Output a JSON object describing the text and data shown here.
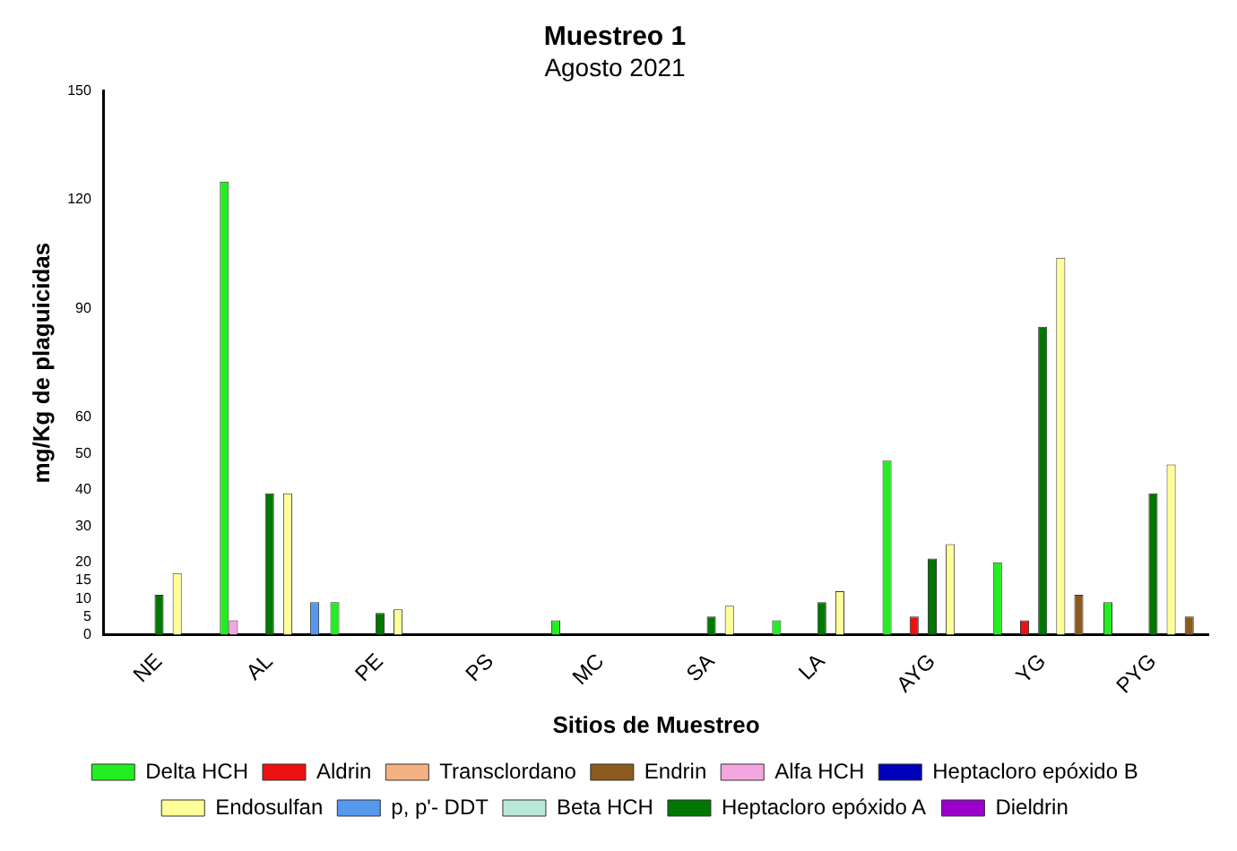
{
  "chart_data": {
    "type": "bar",
    "title": "Muestreo 1",
    "subtitle": "Agosto 2021",
    "xlabel": "Sitios de Muestreo",
    "ylabel": "mg/Kg de plaguicidas",
    "categories": [
      "NE",
      "AL",
      "PE",
      "PS",
      "MC",
      "SA",
      "LA",
      "AYG",
      "YG",
      "PYG"
    ],
    "series": [
      {
        "name": "Delta HCH",
        "color": "#22ee22",
        "values": [
          null,
          125,
          9,
          null,
          4,
          null,
          4,
          48,
          20,
          9
        ]
      },
      {
        "name": "Alfa HCH",
        "color": "#f4a6e0",
        "values": [
          null,
          4,
          null,
          null,
          null,
          null,
          null,
          null,
          null,
          null
        ]
      },
      {
        "name": "Beta HCH",
        "color": "#b8e8d8",
        "values": [
          null,
          null,
          null,
          null,
          null,
          null,
          null,
          null,
          null,
          null
        ]
      },
      {
        "name": "Aldrin",
        "color": "#ee1111",
        "values": [
          null,
          null,
          null,
          null,
          null,
          null,
          null,
          5,
          4,
          null
        ]
      },
      {
        "name": "Heptacloro epóxido B",
        "color": "#0000bb",
        "values": [
          null,
          null,
          null,
          null,
          null,
          null,
          null,
          null,
          null,
          null
        ]
      },
      {
        "name": "Heptacloro epóxido A",
        "color": "#007700",
        "values": [
          11,
          39,
          6,
          null,
          null,
          5,
          9,
          21,
          85,
          39
        ]
      },
      {
        "name": "Transclordano",
        "color": "#f4b183",
        "values": [
          null,
          null,
          null,
          null,
          null,
          null,
          null,
          null,
          null,
          null
        ]
      },
      {
        "name": "Endosulfan",
        "color": "#ffff99",
        "values": [
          17,
          39,
          7,
          null,
          null,
          8,
          12,
          25,
          104,
          47
        ]
      },
      {
        "name": "Dieldrin",
        "color": "#9900cc",
        "values": [
          null,
          null,
          null,
          null,
          null,
          null,
          null,
          null,
          null,
          null
        ]
      },
      {
        "name": "Endrin",
        "color": "#8b5a1e",
        "values": [
          null,
          null,
          null,
          null,
          null,
          null,
          null,
          null,
          11,
          5
        ]
      },
      {
        "name": "p, p'- DDT",
        "color": "#5599ee",
        "values": [
          null,
          9,
          null,
          null,
          null,
          null,
          null,
          null,
          null,
          null
        ]
      }
    ],
    "ylim": [
      0,
      150
    ],
    "yticks": [
      0,
      5,
      10,
      15,
      20,
      30,
      40,
      50,
      60,
      90,
      120,
      150
    ],
    "grid": false,
    "legend": "bottom"
  }
}
